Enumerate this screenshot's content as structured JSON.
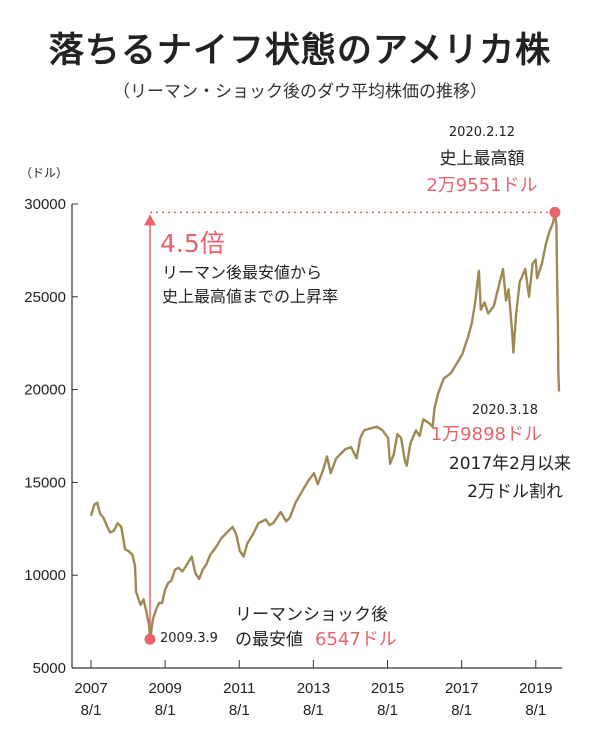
{
  "title": "落ちるナイフ状態のアメリカ株",
  "subtitle": "（リーマン・ショック後のダウ平均株価の推移）",
  "colors": {
    "line": "#9c8a52",
    "accent": "#e8636b",
    "text": "#222222"
  },
  "chart_data": {
    "type": "line",
    "unit": "（ドル）",
    "ylim": [
      5000,
      30000
    ],
    "y_ticks": [
      5000,
      10000,
      15000,
      20000,
      25000,
      30000
    ],
    "x_ticks": [
      {
        "year": "2007",
        "date": "8/1",
        "t": 2007.583
      },
      {
        "year": "2009",
        "date": "8/1",
        "t": 2009.583
      },
      {
        "year": "2011",
        "date": "8/1",
        "t": 2011.583
      },
      {
        "year": "2013",
        "date": "8/1",
        "t": 2013.583
      },
      {
        "year": "2015",
        "date": "8/1",
        "t": 2015.583
      },
      {
        "year": "2017",
        "date": "8/1",
        "t": 2017.583
      },
      {
        "year": "2019",
        "date": "8/1",
        "t": 2019.583
      }
    ],
    "series": [
      {
        "values": [
          [
            2007.583,
            13200
          ],
          [
            2007.67,
            13800
          ],
          [
            2007.75,
            13900
          ],
          [
            2007.83,
            13300
          ],
          [
            2007.92,
            13100
          ],
          [
            2008.0,
            12700
          ],
          [
            2008.1,
            12300
          ],
          [
            2008.2,
            12400
          ],
          [
            2008.3,
            12800
          ],
          [
            2008.4,
            12600
          ],
          [
            2008.5,
            11400
          ],
          [
            2008.6,
            11300
          ],
          [
            2008.7,
            11100
          ],
          [
            2008.77,
            10500
          ],
          [
            2008.8,
            9100
          ],
          [
            2008.85,
            8800
          ],
          [
            2008.92,
            8400
          ],
          [
            2009.0,
            8700
          ],
          [
            2009.08,
            8000
          ],
          [
            2009.15,
            7300
          ],
          [
            2009.18,
            6547
          ],
          [
            2009.25,
            7600
          ],
          [
            2009.33,
            8100
          ],
          [
            2009.42,
            8500
          ],
          [
            2009.5,
            8500
          ],
          [
            2009.58,
            9200
          ],
          [
            2009.67,
            9600
          ],
          [
            2009.75,
            9700
          ],
          [
            2009.85,
            10300
          ],
          [
            2009.95,
            10400
          ],
          [
            2010.05,
            10200
          ],
          [
            2010.15,
            10500
          ],
          [
            2010.3,
            11000
          ],
          [
            2010.4,
            10100
          ],
          [
            2010.5,
            9800
          ],
          [
            2010.6,
            10300
          ],
          [
            2010.7,
            10600
          ],
          [
            2010.8,
            11100
          ],
          [
            2010.95,
            11500
          ],
          [
            2011.1,
            12000
          ],
          [
            2011.3,
            12400
          ],
          [
            2011.4,
            12600
          ],
          [
            2011.5,
            12200
          ],
          [
            2011.6,
            11300
          ],
          [
            2011.7,
            11000
          ],
          [
            2011.8,
            11700
          ],
          [
            2011.95,
            12200
          ],
          [
            2012.1,
            12800
          ],
          [
            2012.3,
            13000
          ],
          [
            2012.4,
            12700
          ],
          [
            2012.5,
            12800
          ],
          [
            2012.7,
            13400
          ],
          [
            2012.85,
            12900
          ],
          [
            2012.95,
            13100
          ],
          [
            2013.1,
            13900
          ],
          [
            2013.3,
            14600
          ],
          [
            2013.45,
            15100
          ],
          [
            2013.6,
            15500
          ],
          [
            2013.7,
            14900
          ],
          [
            2013.85,
            15700
          ],
          [
            2013.95,
            16400
          ],
          [
            2014.05,
            15500
          ],
          [
            2014.2,
            16300
          ],
          [
            2014.45,
            16800
          ],
          [
            2014.6,
            16900
          ],
          [
            2014.75,
            16300
          ],
          [
            2014.85,
            17400
          ],
          [
            2014.95,
            17800
          ],
          [
            2015.1,
            17900
          ],
          [
            2015.3,
            18000
          ],
          [
            2015.45,
            17800
          ],
          [
            2015.6,
            17400
          ],
          [
            2015.65,
            16000
          ],
          [
            2015.75,
            16500
          ],
          [
            2015.85,
            17600
          ],
          [
            2015.95,
            17400
          ],
          [
            2016.05,
            16200
          ],
          [
            2016.1,
            15900
          ],
          [
            2016.2,
            17100
          ],
          [
            2016.35,
            17800
          ],
          [
            2016.45,
            17500
          ],
          [
            2016.55,
            18400
          ],
          [
            2016.7,
            18200
          ],
          [
            2016.8,
            18000
          ],
          [
            2016.85,
            19000
          ],
          [
            2016.95,
            19800
          ],
          [
            2017.1,
            20600
          ],
          [
            2017.3,
            20900
          ],
          [
            2017.45,
            21400
          ],
          [
            2017.6,
            21900
          ],
          [
            2017.75,
            22800
          ],
          [
            2017.85,
            23500
          ],
          [
            2017.95,
            24700
          ],
          [
            2018.05,
            26400
          ],
          [
            2018.1,
            24300
          ],
          [
            2018.2,
            24700
          ],
          [
            2018.3,
            24100
          ],
          [
            2018.45,
            24500
          ],
          [
            2018.55,
            25300
          ],
          [
            2018.7,
            26500
          ],
          [
            2018.78,
            24800
          ],
          [
            2018.85,
            25400
          ],
          [
            2018.95,
            23000
          ],
          [
            2018.98,
            22000
          ],
          [
            2019.05,
            24000
          ],
          [
            2019.15,
            25800
          ],
          [
            2019.3,
            26500
          ],
          [
            2019.4,
            25000
          ],
          [
            2019.5,
            26800
          ],
          [
            2019.58,
            27000
          ],
          [
            2019.62,
            26000
          ],
          [
            2019.75,
            26800
          ],
          [
            2019.85,
            27800
          ],
          [
            2019.95,
            28500
          ],
          [
            2020.05,
            29000
          ],
          [
            2020.1,
            29551
          ],
          [
            2020.14,
            28900
          ],
          [
            2020.16,
            26000
          ],
          [
            2020.18,
            23500
          ],
          [
            2020.19,
            21000
          ],
          [
            2020.21,
            19898
          ]
        ]
      }
    ],
    "annotations": {
      "peak": {
        "t": 2020.1,
        "v": 29551,
        "date": "2020.2.12",
        "label": "史上最高額",
        "value": "2万9551ドル"
      },
      "low": {
        "t": 2009.18,
        "v": 6547,
        "date": "2009.3.9",
        "label1": "リーマンショック後",
        "label2": "の最安値",
        "value": "6547ドル"
      },
      "last": {
        "date": "2020.3.18",
        "value": "1万9898ドル",
        "note1": "2017年2月以来",
        "note2": "2万ドル割れ"
      },
      "ratio": {
        "value": "4.5倍",
        "line1": "リーマン後最安値から",
        "line2": "史上最高値までの上昇率"
      }
    }
  }
}
